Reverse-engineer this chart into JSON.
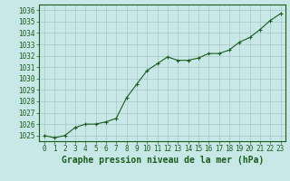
{
  "x": [
    0,
    1,
    2,
    3,
    4,
    5,
    6,
    7,
    8,
    9,
    10,
    11,
    12,
    13,
    14,
    15,
    16,
    17,
    18,
    19,
    20,
    21,
    22,
    23
  ],
  "y": [
    1025.0,
    1024.8,
    1025.0,
    1025.7,
    1026.0,
    1026.0,
    1026.2,
    1026.5,
    1028.3,
    1029.5,
    1030.7,
    1031.3,
    1031.9,
    1031.6,
    1031.6,
    1031.8,
    1032.2,
    1032.2,
    1032.5,
    1033.2,
    1033.6,
    1034.3,
    1035.1,
    1035.7
  ],
  "line_color": "#1a5c1a",
  "marker_color": "#1a5c1a",
  "bg_color": "#c8e8e8",
  "grid_color": "#a0c0c0",
  "title": "Graphe pression niveau de la mer (hPa)",
  "title_color": "#1a5c1a",
  "ylim": [
    1024.5,
    1036.5
  ],
  "yticks": [
    1025,
    1026,
    1027,
    1028,
    1029,
    1030,
    1031,
    1032,
    1033,
    1034,
    1035,
    1036
  ],
  "xlim": [
    -0.5,
    23.5
  ],
  "xticks": [
    0,
    1,
    2,
    3,
    4,
    5,
    6,
    7,
    8,
    9,
    10,
    11,
    12,
    13,
    14,
    15,
    16,
    17,
    18,
    19,
    20,
    21,
    22,
    23
  ],
  "tick_color": "#1a5c1a",
  "tick_fontsize": 5.5,
  "title_fontsize": 7,
  "border_color": "#1a5c1a"
}
